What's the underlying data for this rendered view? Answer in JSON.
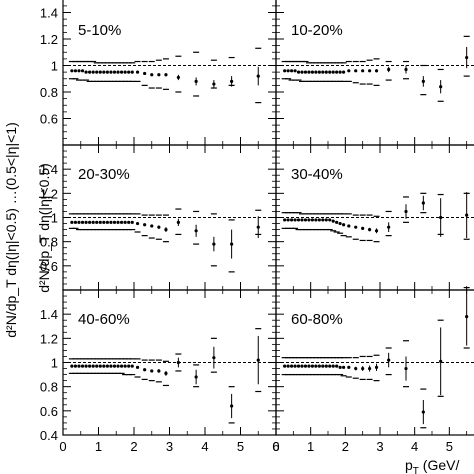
{
  "figure": {
    "ylabel": "d²N/dp_T dη(|η|<0.5)",
    "ylabel_clipped": "d²N/dp_T dη(|η|<0.5) …(0.5<|η|<1)",
    "xlabel_prefix": "p",
    "xlabel_sub": "T",
    "xlabel_suffix": " (GeV/"
  },
  "chart_data": [
    {
      "type": "scatter",
      "panel": "5-10%",
      "label": "5-10%",
      "grid": false,
      "xlim": [
        0,
        6
      ],
      "ylim": [
        0.4,
        1.6
      ],
      "reference_line": 1,
      "x": [
        0.25,
        0.35,
        0.45,
        0.55,
        0.65,
        0.75,
        0.85,
        0.95,
        1.05,
        1.15,
        1.25,
        1.35,
        1.45,
        1.55,
        1.65,
        1.75,
        1.85,
        1.95,
        2.1,
        2.3,
        2.5,
        2.7,
        2.9,
        3.25,
        3.75,
        4.25,
        4.75,
        5.5
      ],
      "y": [
        0.96,
        0.96,
        0.96,
        0.96,
        0.95,
        0.95,
        0.95,
        0.95,
        0.95,
        0.95,
        0.95,
        0.95,
        0.95,
        0.95,
        0.95,
        0.95,
        0.95,
        0.95,
        0.95,
        0.94,
        0.93,
        0.93,
        0.93,
        0.91,
        0.88,
        0.86,
        0.88,
        0.92
      ],
      "stat_err": [
        0.005,
        0.005,
        0.005,
        0.005,
        0.005,
        0.005,
        0.005,
        0.005,
        0.005,
        0.005,
        0.005,
        0.005,
        0.005,
        0.005,
        0.005,
        0.005,
        0.005,
        0.005,
        0.005,
        0.007,
        0.008,
        0.01,
        0.012,
        0.02,
        0.03,
        0.03,
        0.04,
        0.07
      ],
      "sys_upper": [
        1.03,
        1.03,
        1.03,
        1.03,
        1.03,
        1.03,
        1.03,
        1.02,
        1.02,
        1.02,
        1.02,
        1.02,
        1.02,
        1.02,
        1.02,
        1.02,
        1.02,
        1.02,
        1.03,
        1.03,
        1.03,
        1.04,
        1.05,
        1.07,
        1.1,
        1.04,
        1.06,
        1.13
      ],
      "sys_lower": [
        0.9,
        0.9,
        0.89,
        0.89,
        0.89,
        0.88,
        0.88,
        0.88,
        0.88,
        0.88,
        0.88,
        0.88,
        0.88,
        0.88,
        0.88,
        0.88,
        0.88,
        0.88,
        0.88,
        0.85,
        0.83,
        0.83,
        0.82,
        0.8,
        0.77,
        0.83,
        0.85,
        0.72
      ]
    },
    {
      "type": "scatter",
      "panel": "10-20%",
      "label": "10-20%",
      "grid": false,
      "xlim": [
        0,
        6
      ],
      "ylim": [
        0.4,
        1.6
      ],
      "reference_line": 1,
      "x": [
        0.25,
        0.35,
        0.45,
        0.55,
        0.65,
        0.75,
        0.85,
        0.95,
        1.05,
        1.15,
        1.25,
        1.35,
        1.45,
        1.55,
        1.65,
        1.75,
        1.85,
        1.95,
        2.1,
        2.3,
        2.5,
        2.7,
        2.9,
        3.25,
        3.75,
        4.25,
        4.75,
        5.5
      ],
      "y": [
        0.96,
        0.96,
        0.96,
        0.96,
        0.95,
        0.95,
        0.95,
        0.95,
        0.95,
        0.95,
        0.95,
        0.95,
        0.95,
        0.95,
        0.95,
        0.95,
        0.95,
        0.95,
        0.96,
        0.96,
        0.96,
        0.96,
        0.96,
        0.97,
        0.97,
        0.88,
        0.84,
        1.06
      ],
      "stat_err": [
        0.005,
        0.005,
        0.005,
        0.005,
        0.005,
        0.005,
        0.005,
        0.005,
        0.005,
        0.005,
        0.005,
        0.005,
        0.005,
        0.005,
        0.005,
        0.005,
        0.005,
        0.005,
        0.005,
        0.007,
        0.008,
        0.01,
        0.012,
        0.02,
        0.03,
        0.04,
        0.05,
        0.08
      ],
      "sys_upper": [
        1.03,
        1.03,
        1.03,
        1.03,
        1.03,
        1.03,
        1.03,
        1.02,
        1.02,
        1.02,
        1.02,
        1.02,
        1.02,
        1.02,
        1.02,
        1.02,
        1.02,
        1.02,
        1.03,
        1.03,
        1.03,
        1.04,
        1.05,
        1.03,
        1.03,
        1.0,
        0.97,
        1.22
      ],
      "sys_lower": [
        0.9,
        0.9,
        0.89,
        0.89,
        0.89,
        0.88,
        0.88,
        0.88,
        0.88,
        0.88,
        0.88,
        0.88,
        0.88,
        0.88,
        0.88,
        0.88,
        0.88,
        0.88,
        0.88,
        0.87,
        0.86,
        0.86,
        0.85,
        0.89,
        0.9,
        0.78,
        0.73,
        0.92
      ]
    },
    {
      "type": "scatter",
      "panel": "20-30%",
      "label": "20-30%",
      "grid": false,
      "xlim": [
        0,
        6
      ],
      "ylim": [
        0.4,
        1.6
      ],
      "reference_line": 1,
      "x": [
        0.25,
        0.35,
        0.45,
        0.55,
        0.65,
        0.75,
        0.85,
        0.95,
        1.05,
        1.15,
        1.25,
        1.35,
        1.45,
        1.55,
        1.65,
        1.75,
        1.85,
        1.95,
        2.1,
        2.3,
        2.5,
        2.7,
        2.9,
        3.25,
        3.75,
        4.25,
        4.75,
        5.5
      ],
      "y": [
        0.96,
        0.96,
        0.96,
        0.96,
        0.96,
        0.96,
        0.96,
        0.96,
        0.96,
        0.96,
        0.96,
        0.96,
        0.96,
        0.96,
        0.96,
        0.96,
        0.96,
        0.96,
        0.95,
        0.94,
        0.93,
        0.92,
        0.9,
        0.96,
        0.89,
        0.78,
        0.78,
        0.92
      ],
      "stat_err": [
        0.005,
        0.005,
        0.005,
        0.005,
        0.005,
        0.005,
        0.005,
        0.005,
        0.005,
        0.005,
        0.005,
        0.005,
        0.005,
        0.005,
        0.005,
        0.005,
        0.005,
        0.005,
        0.007,
        0.01,
        0.012,
        0.015,
        0.02,
        0.03,
        0.05,
        0.06,
        0.12,
        0.09
      ],
      "sys_upper": [
        1.03,
        1.03,
        1.03,
        1.03,
        1.03,
        1.03,
        1.03,
        1.03,
        1.03,
        1.03,
        1.03,
        1.03,
        1.03,
        1.03,
        1.03,
        1.03,
        1.03,
        1.03,
        1.03,
        1.02,
        1.02,
        1.02,
        1.02,
        1.07,
        1.05,
        1.03,
        0.98,
        1.06
      ],
      "sys_lower": [
        0.91,
        0.91,
        0.9,
        0.9,
        0.9,
        0.9,
        0.9,
        0.9,
        0.9,
        0.9,
        0.9,
        0.9,
        0.9,
        0.9,
        0.9,
        0.9,
        0.9,
        0.9,
        0.88,
        0.85,
        0.83,
        0.82,
        0.8,
        0.86,
        0.78,
        0.6,
        0.55,
        0.86
      ]
    },
    {
      "type": "scatter",
      "panel": "30-40%",
      "label": "30-40%",
      "grid": false,
      "xlim": [
        0,
        6
      ],
      "ylim": [
        0.4,
        1.6
      ],
      "reference_line": 1,
      "x": [
        0.25,
        0.35,
        0.45,
        0.55,
        0.65,
        0.75,
        0.85,
        0.95,
        1.05,
        1.15,
        1.25,
        1.35,
        1.45,
        1.55,
        1.65,
        1.75,
        1.85,
        1.95,
        2.1,
        2.3,
        2.5,
        2.7,
        2.9,
        3.25,
        3.75,
        4.25,
        4.75,
        5.5
      ],
      "y": [
        0.98,
        0.98,
        0.98,
        0.98,
        0.98,
        0.98,
        0.98,
        0.98,
        0.98,
        0.98,
        0.98,
        0.98,
        0.98,
        0.98,
        0.97,
        0.96,
        0.95,
        0.94,
        0.93,
        0.92,
        0.91,
        0.9,
        0.89,
        0.92,
        1.05,
        1.12,
        1.0,
        1.02
      ],
      "stat_err": [
        0.005,
        0.005,
        0.005,
        0.005,
        0.005,
        0.005,
        0.005,
        0.005,
        0.005,
        0.005,
        0.005,
        0.005,
        0.005,
        0.005,
        0.005,
        0.005,
        0.005,
        0.006,
        0.008,
        0.01,
        0.012,
        0.015,
        0.02,
        0.04,
        0.06,
        0.06,
        0.16,
        0.19
      ],
      "sys_upper": [
        1.04,
        1.04,
        1.04,
        1.04,
        1.04,
        1.03,
        1.03,
        1.03,
        1.03,
        1.03,
        1.03,
        1.03,
        1.03,
        1.03,
        1.03,
        1.03,
        1.03,
        1.03,
        1.03,
        1.02,
        1.02,
        1.02,
        1.01,
        1.05,
        1.17,
        1.2,
        1.19,
        1.2
      ],
      "sys_lower": [
        0.91,
        0.91,
        0.91,
        0.91,
        0.9,
        0.9,
        0.9,
        0.9,
        0.9,
        0.9,
        0.9,
        0.9,
        0.9,
        0.9,
        0.89,
        0.88,
        0.87,
        0.85,
        0.84,
        0.82,
        0.81,
        0.81,
        0.8,
        0.85,
        0.96,
        1.04,
        0.86,
        0.82
      ]
    },
    {
      "type": "scatter",
      "panel": "40-60%",
      "label": "40-60%",
      "grid": false,
      "xlim": [
        0,
        6
      ],
      "ylim": [
        0.4,
        1.6
      ],
      "reference_line": 1,
      "x": [
        0.25,
        0.35,
        0.45,
        0.55,
        0.65,
        0.75,
        0.85,
        0.95,
        1.05,
        1.15,
        1.25,
        1.35,
        1.45,
        1.55,
        1.65,
        1.75,
        1.85,
        1.95,
        2.1,
        2.3,
        2.5,
        2.7,
        2.9,
        3.25,
        3.75,
        4.25,
        4.75,
        5.5
      ],
      "y": [
        0.97,
        0.97,
        0.97,
        0.97,
        0.97,
        0.97,
        0.97,
        0.97,
        0.97,
        0.97,
        0.97,
        0.97,
        0.97,
        0.97,
        0.97,
        0.97,
        0.97,
        0.97,
        0.96,
        0.94,
        0.93,
        0.93,
        0.91,
        1.0,
        0.88,
        1.04,
        0.64,
        1.02
      ],
      "stat_err": [
        0.005,
        0.005,
        0.005,
        0.005,
        0.005,
        0.005,
        0.005,
        0.005,
        0.005,
        0.005,
        0.005,
        0.005,
        0.005,
        0.005,
        0.005,
        0.005,
        0.005,
        0.006,
        0.008,
        0.01,
        0.012,
        0.015,
        0.02,
        0.04,
        0.06,
        0.09,
        0.1,
        0.2
      ],
      "sys_upper": [
        1.03,
        1.03,
        1.03,
        1.03,
        1.03,
        1.03,
        1.03,
        1.03,
        1.03,
        1.03,
        1.03,
        1.03,
        1.03,
        1.03,
        1.03,
        1.03,
        1.03,
        1.03,
        1.03,
        1.02,
        1.02,
        1.02,
        1.01,
        1.07,
        0.98,
        1.2,
        0.8,
        1.28
      ],
      "sys_lower": [
        0.91,
        0.91,
        0.91,
        0.91,
        0.91,
        0.91,
        0.91,
        0.91,
        0.91,
        0.91,
        0.91,
        0.91,
        0.91,
        0.91,
        0.91,
        0.9,
        0.9,
        0.9,
        0.88,
        0.86,
        0.85,
        0.84,
        0.81,
        0.93,
        0.8,
        0.92,
        0.5,
        0.76
      ]
    },
    {
      "type": "scatter",
      "panel": "60-80%",
      "label": "60-80%",
      "grid": false,
      "xlim": [
        0,
        6
      ],
      "ylim": [
        0.4,
        1.6
      ],
      "reference_line": 1,
      "x": [
        0.25,
        0.35,
        0.45,
        0.55,
        0.65,
        0.75,
        0.85,
        0.95,
        1.05,
        1.15,
        1.25,
        1.35,
        1.45,
        1.55,
        1.65,
        1.75,
        1.85,
        1.95,
        2.1,
        2.3,
        2.5,
        2.7,
        2.9,
        3.25,
        3.75,
        4.25,
        4.75,
        5.5
      ],
      "y": [
        0.97,
        0.97,
        0.97,
        0.97,
        0.97,
        0.97,
        0.97,
        0.97,
        0.97,
        0.97,
        0.97,
        0.97,
        0.97,
        0.97,
        0.97,
        0.97,
        0.96,
        0.96,
        0.96,
        0.95,
        0.95,
        0.95,
        0.96,
        1.02,
        0.95,
        0.59,
        1.01,
        1.38
      ],
      "stat_err": [
        0.006,
        0.006,
        0.006,
        0.006,
        0.006,
        0.006,
        0.006,
        0.006,
        0.006,
        0.006,
        0.006,
        0.006,
        0.006,
        0.006,
        0.006,
        0.006,
        0.006,
        0.008,
        0.01,
        0.015,
        0.02,
        0.025,
        0.03,
        0.06,
        0.1,
        0.1,
        0.28,
        0.24
      ],
      "sys_upper": [
        1.04,
        1.04,
        1.04,
        1.04,
        1.04,
        1.04,
        1.04,
        1.04,
        1.04,
        1.04,
        1.04,
        1.04,
        1.04,
        1.04,
        1.04,
        1.04,
        1.04,
        1.04,
        1.04,
        1.04,
        1.05,
        1.05,
        1.06,
        1.12,
        1.18,
        0.78,
        1.35,
        1.62
      ],
      "sys_lower": [
        0.9,
        0.9,
        0.9,
        0.9,
        0.9,
        0.9,
        0.9,
        0.9,
        0.9,
        0.9,
        0.9,
        0.9,
        0.9,
        0.9,
        0.9,
        0.9,
        0.9,
        0.89,
        0.88,
        0.87,
        0.86,
        0.86,
        0.85,
        0.9,
        0.8,
        0.46,
        0.72,
        1.12
      ]
    }
  ],
  "y_ticks": [
    0.4,
    0.6,
    0.8,
    1,
    1.2,
    1.4
  ],
  "y_tick_labels": [
    "0.4",
    "0.6",
    "0.8",
    "1",
    "1.2",
    "1.4"
  ],
  "x_ticks_left": [
    0,
    1,
    2,
    3,
    4,
    5,
    6
  ],
  "x_tick_labels_left": [
    "0",
    "1",
    "2",
    "3",
    "4",
    "5",
    "6"
  ],
  "x_ticks_right": [
    0,
    1,
    2,
    3,
    4,
    5
  ],
  "x_tick_labels_right": [
    "0",
    "1",
    "2",
    "3",
    "4",
    "5"
  ]
}
